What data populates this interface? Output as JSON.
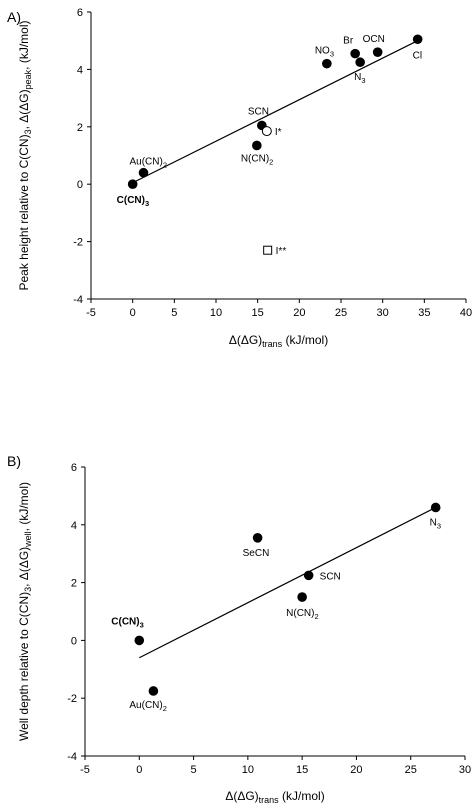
{
  "chart_data": [
    {
      "type": "scatter",
      "panel_label": "A)",
      "ylabel": "Peak height relative to C(CN)3, Δ(ΔG)peak, (kJ/mol)",
      "xlabel": "Δ(ΔG)trans (kJ/mol)",
      "xlim": [
        -5,
        40
      ],
      "ylim": [
        -4,
        6
      ],
      "xticks": [
        -5,
        0,
        5,
        10,
        15,
        20,
        25,
        30,
        35,
        40
      ],
      "yticks": [
        -4,
        -2,
        0,
        2,
        4,
        6
      ],
      "grid": false,
      "points": [
        {
          "label": "C(CN)3",
          "x": 0,
          "y": 0,
          "marker": "filled-circle",
          "bold": true
        },
        {
          "label": "Au(CN)2",
          "x": 1.3,
          "y": 0.4,
          "marker": "filled-circle"
        },
        {
          "label": "N(CN)2",
          "x": 14.9,
          "y": 1.35,
          "marker": "filled-circle"
        },
        {
          "label": "SCN",
          "x": 15.5,
          "y": 2.05,
          "marker": "filled-circle"
        },
        {
          "label": "I*",
          "x": 16.1,
          "y": 1.85,
          "marker": "open-circle"
        },
        {
          "label": "I**",
          "x": 16.2,
          "y": -2.3,
          "marker": "open-square"
        },
        {
          "label": "NO3",
          "x": 23.3,
          "y": 4.2,
          "marker": "filled-circle"
        },
        {
          "label": "Br",
          "x": 26.7,
          "y": 4.55,
          "marker": "filled-circle"
        },
        {
          "label": "N3",
          "x": 27.3,
          "y": 4.25,
          "marker": "filled-circle"
        },
        {
          "label": "OCN",
          "x": 29.4,
          "y": 4.6,
          "marker": "filled-circle"
        },
        {
          "label": "Cl",
          "x": 34.2,
          "y": 5.05,
          "marker": "filled-circle"
        }
      ],
      "fit_line": {
        "x": [
          0,
          34.2
        ],
        "y": [
          0.05,
          5.0
        ]
      }
    },
    {
      "type": "scatter",
      "panel_label": "B)",
      "ylabel": "Well depth relative to C(CN)3, Δ(ΔG)well, (kJ/mol)",
      "xlabel": "Δ(ΔG)trans (kJ/mol)",
      "xlim": [
        -5,
        30
      ],
      "ylim": [
        -4,
        6
      ],
      "xticks": [
        -5,
        0,
        5,
        10,
        15,
        20,
        25,
        30
      ],
      "yticks": [
        -4,
        -2,
        0,
        2,
        4,
        6
      ],
      "grid": false,
      "points": [
        {
          "label": "C(CN)3",
          "x": 0,
          "y": 0,
          "marker": "filled-circle",
          "bold": true
        },
        {
          "label": "Au(CN)2",
          "x": 1.3,
          "y": -1.75,
          "marker": "filled-circle"
        },
        {
          "label": "SeCN",
          "x": 10.9,
          "y": 3.55,
          "marker": "filled-circle"
        },
        {
          "label": "N(CN)2",
          "x": 15.0,
          "y": 1.5,
          "marker": "filled-circle"
        },
        {
          "label": "SCN",
          "x": 15.6,
          "y": 2.25,
          "marker": "filled-circle"
        },
        {
          "label": "N3",
          "x": 27.3,
          "y": 4.6,
          "marker": "filled-circle"
        }
      ],
      "fit_line": {
        "x": [
          0,
          27.3
        ],
        "y": [
          -0.6,
          4.6
        ]
      }
    }
  ]
}
